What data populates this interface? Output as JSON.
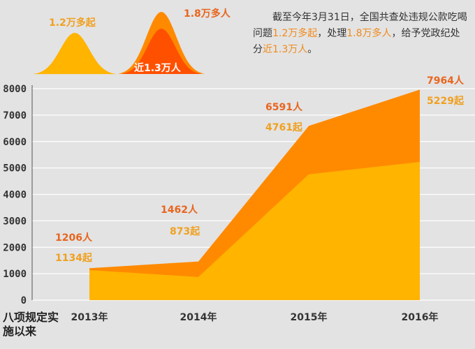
{
  "colors": {
    "cases_fill": "#ffb400",
    "people_fill": "#ff8a00",
    "hump_small": "#ffb400",
    "hump_big_outer": "#ff8a00",
    "hump_big_inner": "#ff5000",
    "people_label": "#e8651e",
    "cases_label": "#f0a020",
    "highlight": "#f08a1a",
    "background": "#e3e3e3",
    "gridline": "#ffffff"
  },
  "humps": {
    "cases_label": "1.2万多起",
    "people_label": "1.8万多人",
    "punished_label": "近1.3万人"
  },
  "summary": {
    "part1": "截至今年3月31日，全国共查处违规公款吃喝问题",
    "cases": "1.2万多起",
    "part2": "，处理",
    "people": "1.8万多人",
    "part3": "，给予党政纪处分",
    "punished": "近1.3万人",
    "part4": "。"
  },
  "footer_label": "八项规定实施以来",
  "chart_data": {
    "type": "area",
    "categories": [
      "2013年",
      "2014年",
      "2015年",
      "2016年"
    ],
    "series": [
      {
        "name": "人",
        "values": [
          1206,
          1462,
          6591,
          7964
        ],
        "labels": [
          "1206人",
          "1462人",
          "6591人",
          "7964人"
        ]
      },
      {
        "name": "起",
        "values": [
          1134,
          873,
          4761,
          5229
        ],
        "labels": [
          "1134起",
          "873起",
          "4761起",
          "5229起"
        ]
      }
    ],
    "yticks": [
      "0",
      "1000",
      "2000",
      "3000",
      "4000",
      "5000",
      "6000",
      "7000",
      "8000"
    ],
    "ylim": [
      0,
      8000
    ],
    "grid": true
  }
}
